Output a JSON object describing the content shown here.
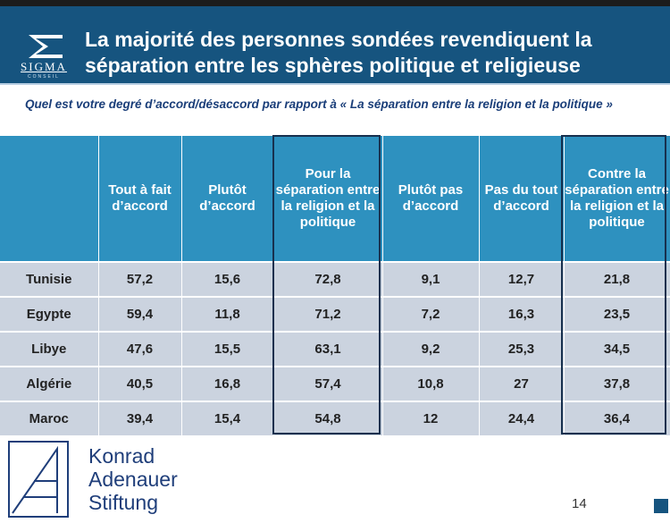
{
  "header": {
    "logo_name": "SIGMA",
    "logo_sub": "CONSEIL",
    "title": "La majorité des personnes sondées revendiquent la séparation entre les sphères politique et religieuse",
    "background_color": "#16547f"
  },
  "question": "Quel est votre degré d’accord/désaccord par rapport à « La séparation entre la religion et la politique »",
  "table": {
    "header_color": "#2e91bf",
    "row_color": "#cbd3df",
    "columns": [
      "",
      "Tout à fait d’accord",
      "Plutôt d’accord",
      "Pour la séparation entre la religion et la politique",
      "Plutôt pas d’accord",
      "Pas du tout d’accord",
      "Contre la séparation entre la religion et la politique"
    ],
    "rows": [
      {
        "country": "Tunisie",
        "values": [
          "57,2",
          "15,6",
          "72,8",
          "9,1",
          "12,7",
          "21,8"
        ]
      },
      {
        "country": "Egypte",
        "values": [
          "59,4",
          "11,8",
          "71,2",
          "7,2",
          "16,3",
          "23,5"
        ]
      },
      {
        "country": "Libye",
        "values": [
          "47,6",
          "15,5",
          "63,1",
          "9,2",
          "25,3",
          "34,5"
        ]
      },
      {
        "country": "Algérie",
        "values": [
          "40,5",
          "16,8",
          "57,4",
          "10,8",
          "27",
          "37,8"
        ]
      },
      {
        "country": "Maroc",
        "values": [
          "39,4",
          "15,4",
          "54,8",
          "12",
          "24,4",
          "36,4"
        ]
      }
    ]
  },
  "footer": {
    "org_lines": [
      "Konrad",
      "Adenauer",
      "Stiftung"
    ],
    "page_number": "14",
    "icon": "kas-logo-icon"
  }
}
